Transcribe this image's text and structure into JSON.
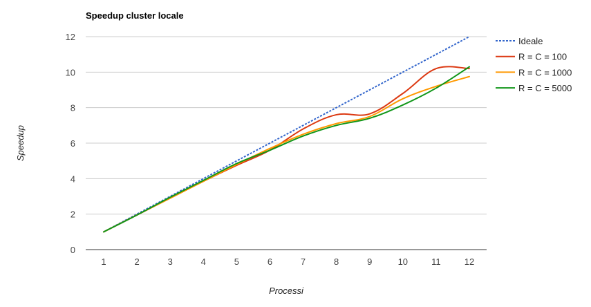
{
  "chart_data": {
    "type": "line",
    "title": "Speedup cluster locale",
    "xlabel": "Processi",
    "ylabel": "Speedup",
    "x": [
      1,
      2,
      3,
      4,
      5,
      6,
      7,
      8,
      9,
      10,
      11,
      12
    ],
    "ylim": [
      0,
      12
    ],
    "yticks": [
      0,
      2,
      4,
      6,
      8,
      10,
      12
    ],
    "grid": true,
    "legend_position": "right",
    "series": [
      {
        "name": "Ideale",
        "style": "dashed",
        "color": "#3366cc",
        "values": [
          1,
          2,
          3,
          4,
          5,
          6,
          7,
          8,
          9,
          10,
          11,
          12
        ]
      },
      {
        "name": "R = C = 100",
        "style": "solid",
        "color": "#dc3912",
        "values": [
          1,
          1.95,
          2.9,
          3.85,
          4.75,
          5.6,
          6.8,
          7.6,
          7.65,
          8.8,
          10.2,
          10.2
        ]
      },
      {
        "name": "R = C = 1000",
        "style": "solid",
        "color": "#ff9900",
        "values": [
          1,
          1.95,
          2.9,
          3.85,
          4.8,
          5.7,
          6.5,
          7.1,
          7.5,
          8.5,
          9.2,
          9.75
        ]
      },
      {
        "name": "R = C = 5000",
        "style": "solid",
        "color": "#109618",
        "values": [
          1,
          1.95,
          2.95,
          3.9,
          4.85,
          5.6,
          6.4,
          7.0,
          7.4,
          8.15,
          9.1,
          10.3
        ]
      }
    ]
  }
}
